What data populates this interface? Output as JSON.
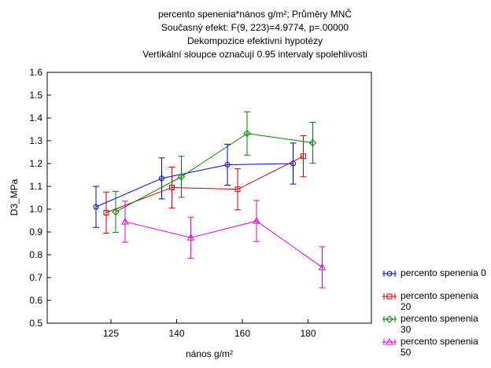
{
  "chart_data": {
    "type": "line",
    "title": [
      "percento spenenia*nános g/m²; Průměry MNČ",
      "Současný efekt: F(9, 223)=4.9774, p=.00000",
      "Dekompozice efektivní hypotézy",
      "Vertikální sloupce označují 0.95 intervaly spolehlivosti"
    ],
    "x_label": "nános g/m²",
    "y_label": "D3_MPa",
    "categories": [
      "125",
      "140",
      "160",
      "180"
    ],
    "ylim": [
      0.5,
      1.6
    ],
    "yticks": [
      {
        "value": 0.5,
        "label": "0.5"
      },
      {
        "value": 0.6,
        "label": "0.6"
      },
      {
        "value": 0.7,
        "label": "0.7"
      },
      {
        "value": 0.8,
        "label": "0.8"
      },
      {
        "value": 0.9,
        "label": "0.9"
      },
      {
        "value": 1.0,
        "label": "1.0"
      },
      {
        "value": 1.1,
        "label": "1.1"
      },
      {
        "value": 1.2,
        "label": "1.2"
      },
      {
        "value": 1.3,
        "label": "1.3"
      },
      {
        "value": 1.4,
        "label": "1.4"
      },
      {
        "value": 1.5,
        "label": "1.5"
      },
      {
        "value": 1.6,
        "label": "1.6"
      }
    ],
    "series": [
      {
        "name": "percento spenenia 0",
        "color": "#0000cc",
        "marker": "circle",
        "values": [
          1.01,
          1.135,
          1.195,
          1.2
        ],
        "errors": [
          0.09,
          0.09,
          0.09,
          0.09
        ]
      },
      {
        "name": "percento spenenia 20",
        "color": "#cc0000",
        "marker": "square",
        "values": [
          0.985,
          1.095,
          1.087,
          1.232
        ],
        "errors": [
          0.09,
          0.09,
          0.09,
          0.09
        ]
      },
      {
        "name": "percento spenenia 30",
        "color": "#008000",
        "marker": "diamond",
        "values": [
          0.988,
          1.142,
          1.332,
          1.291
        ],
        "errors": [
          0.09,
          0.09,
          0.095,
          0.09
        ]
      },
      {
        "name": "percento spenenia 50",
        "color": "#e000e0",
        "marker": "triangle",
        "values": [
          0.945,
          0.875,
          0.948,
          0.745
        ],
        "errors": [
          0.09,
          0.09,
          0.09,
          0.09
        ]
      }
    ]
  }
}
